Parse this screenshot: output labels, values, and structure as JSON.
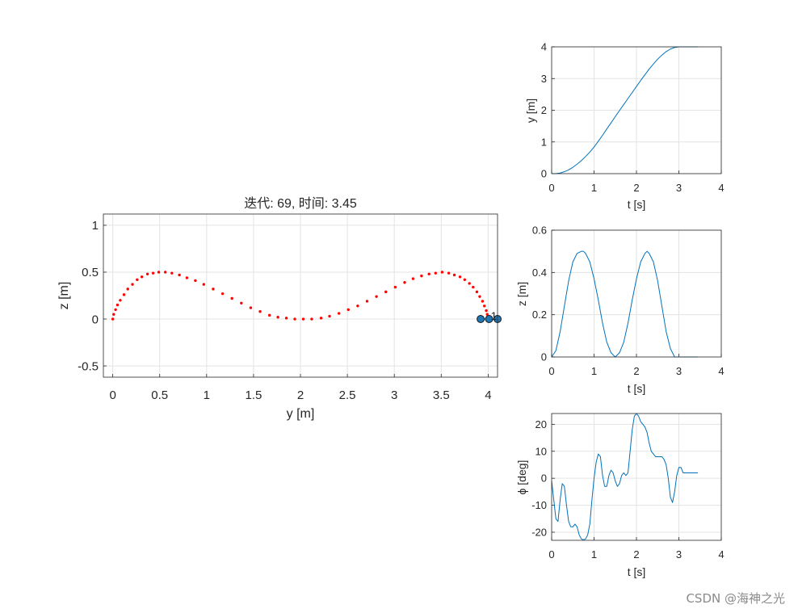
{
  "watermark": "CSDN @海神之光",
  "chart_data": [
    {
      "id": "main",
      "type": "scatter",
      "title": "迭代: 69, 时间: 3.45",
      "xlabel": "y [m]",
      "ylabel": "z [m]",
      "xlim": [
        -0.1,
        4.1
      ],
      "ylim": [
        -0.62,
        1.12
      ],
      "xticks": [
        0,
        0.5,
        1,
        1.5,
        2,
        2.5,
        3,
        3.5,
        4
      ],
      "xtick_labels": [
        "0",
        "0.5",
        "1",
        "1.5",
        "2",
        "2.5",
        "3",
        "3.5",
        "4"
      ],
      "yticks": [
        -0.5,
        0,
        0.5,
        1
      ],
      "ytick_labels": [
        "-0.5",
        "0",
        "0.5",
        "1"
      ],
      "grid": true,
      "series": [
        {
          "marker": "dot",
          "color": "#ff0000",
          "x": [
            0.0,
            0.01,
            0.03,
            0.05,
            0.08,
            0.12,
            0.16,
            0.21,
            0.26,
            0.31,
            0.37,
            0.43,
            0.49,
            0.56,
            0.63,
            0.71,
            0.79,
            0.88,
            0.97,
            1.07,
            1.17,
            1.27,
            1.37,
            1.47,
            1.57,
            1.67,
            1.76,
            1.85,
            1.94,
            2.03,
            2.12,
            2.22,
            2.31,
            2.41,
            2.51,
            2.61,
            2.71,
            2.81,
            2.91,
            3.01,
            3.11,
            3.2,
            3.29,
            3.37,
            3.44,
            3.51,
            3.58,
            3.64,
            3.7,
            3.75,
            3.8,
            3.84,
            3.88,
            3.91,
            3.94,
            3.96,
            3.98,
            3.99,
            4.0
          ],
          "y": [
            0.0,
            0.05,
            0.1,
            0.15,
            0.2,
            0.26,
            0.32,
            0.37,
            0.42,
            0.45,
            0.48,
            0.49,
            0.5,
            0.5,
            0.49,
            0.47,
            0.44,
            0.41,
            0.37,
            0.32,
            0.27,
            0.22,
            0.17,
            0.12,
            0.08,
            0.04,
            0.02,
            0.01,
            0.0,
            0.0,
            0.0,
            0.01,
            0.03,
            0.06,
            0.1,
            0.14,
            0.19,
            0.24,
            0.29,
            0.34,
            0.39,
            0.43,
            0.46,
            0.48,
            0.49,
            0.5,
            0.49,
            0.47,
            0.45,
            0.42,
            0.38,
            0.34,
            0.29,
            0.24,
            0.19,
            0.14,
            0.09,
            0.05,
            0.0
          ]
        }
      ],
      "robot": {
        "body_x": [
          3.92,
          4.01,
          4.1
        ],
        "body_y": [
          0.0,
          0.0,
          0.0
        ],
        "fill": "#1f77b4",
        "label": "1"
      }
    },
    {
      "id": "y_vs_t",
      "type": "line",
      "xlabel": "t [s]",
      "ylabel": "y [m]",
      "xlim": [
        0,
        4
      ],
      "ylim": [
        0,
        4
      ],
      "xticks": [
        0,
        1,
        2,
        3,
        4
      ],
      "xtick_labels": [
        "0",
        "1",
        "2",
        "3",
        "4"
      ],
      "yticks": [
        0,
        1,
        2,
        3,
        4
      ],
      "ytick_labels": [
        "0",
        "1",
        "2",
        "3",
        "4"
      ],
      "grid": true,
      "series": [
        {
          "color": "#0072bd",
          "x": [
            0.0,
            0.1,
            0.2,
            0.3,
            0.4,
            0.5,
            0.6,
            0.7,
            0.8,
            0.9,
            1.0,
            1.1,
            1.2,
            1.3,
            1.4,
            1.5,
            1.6,
            1.7,
            1.8,
            1.9,
            2.0,
            2.1,
            2.2,
            2.3,
            2.4,
            2.5,
            2.6,
            2.7,
            2.8,
            2.9,
            3.0,
            3.1,
            3.2,
            3.3,
            3.4,
            3.45
          ],
          "y": [
            0.0,
            0.0,
            0.02,
            0.06,
            0.12,
            0.2,
            0.3,
            0.41,
            0.54,
            0.68,
            0.84,
            1.02,
            1.21,
            1.41,
            1.6,
            1.8,
            1.99,
            2.18,
            2.37,
            2.56,
            2.75,
            2.94,
            3.12,
            3.3,
            3.46,
            3.61,
            3.74,
            3.85,
            3.93,
            3.98,
            4.0,
            4.0,
            4.0,
            4.0,
            4.0,
            4.0
          ]
        }
      ]
    },
    {
      "id": "z_vs_t",
      "type": "line",
      "xlabel": "t [s]",
      "ylabel": "z [m]",
      "xlim": [
        0,
        4
      ],
      "ylim": [
        0,
        0.6
      ],
      "xticks": [
        0,
        1,
        2,
        3,
        4
      ],
      "xtick_labels": [
        "0",
        "1",
        "2",
        "3",
        "4"
      ],
      "yticks": [
        0,
        0.2,
        0.4,
        0.6
      ],
      "ytick_labels": [
        "0",
        "0.2",
        "0.4",
        "0.6"
      ],
      "grid": true,
      "series": [
        {
          "color": "#0072bd",
          "x": [
            0.0,
            0.1,
            0.2,
            0.3,
            0.4,
            0.5,
            0.6,
            0.7,
            0.75,
            0.8,
            0.9,
            1.0,
            1.1,
            1.2,
            1.3,
            1.4,
            1.5,
            1.6,
            1.7,
            1.8,
            1.9,
            2.0,
            2.1,
            2.2,
            2.25,
            2.3,
            2.4,
            2.5,
            2.6,
            2.7,
            2.8,
            2.9,
            3.0,
            3.1,
            3.2,
            3.3,
            3.45
          ],
          "y": [
            0.0,
            0.03,
            0.12,
            0.24,
            0.36,
            0.45,
            0.49,
            0.5,
            0.5,
            0.49,
            0.45,
            0.37,
            0.27,
            0.16,
            0.07,
            0.02,
            0.0,
            0.02,
            0.07,
            0.16,
            0.27,
            0.37,
            0.45,
            0.49,
            0.5,
            0.49,
            0.45,
            0.36,
            0.24,
            0.12,
            0.04,
            0.0,
            0.0,
            0.0,
            0.0,
            0.0,
            0.0
          ]
        }
      ]
    },
    {
      "id": "phi_vs_t",
      "type": "line",
      "xlabel": "t [s]",
      "ylabel": "ϕ [deg]",
      "xlim": [
        0,
        4
      ],
      "ylim": [
        -23,
        24
      ],
      "xticks": [
        0,
        1,
        2,
        3,
        4
      ],
      "xtick_labels": [
        "0",
        "1",
        "2",
        "3",
        "4"
      ],
      "yticks": [
        -20,
        -10,
        0,
        10,
        20
      ],
      "ytick_labels": [
        "-20",
        "-10",
        "0",
        "10",
        "20"
      ],
      "grid": true,
      "series": [
        {
          "color": "#0072bd",
          "x": [
            0.0,
            0.05,
            0.1,
            0.15,
            0.2,
            0.25,
            0.3,
            0.35,
            0.4,
            0.45,
            0.5,
            0.55,
            0.6,
            0.65,
            0.7,
            0.75,
            0.8,
            0.85,
            0.9,
            0.95,
            1.0,
            1.05,
            1.1,
            1.15,
            1.2,
            1.25,
            1.3,
            1.35,
            1.4,
            1.45,
            1.5,
            1.55,
            1.6,
            1.65,
            1.7,
            1.75,
            1.8,
            1.85,
            1.9,
            1.95,
            2.0,
            2.05,
            2.1,
            2.15,
            2.2,
            2.25,
            2.3,
            2.35,
            2.4,
            2.45,
            2.5,
            2.55,
            2.6,
            2.65,
            2.7,
            2.75,
            2.8,
            2.85,
            2.9,
            2.95,
            3.0,
            3.05,
            3.1,
            3.15,
            3.2,
            3.25,
            3.3,
            3.35,
            3.4,
            3.45
          ],
          "y": [
            -1.0,
            -8.0,
            -15.0,
            -16.0,
            -8.0,
            -2.0,
            -3.0,
            -10.0,
            -16.0,
            -18.0,
            -18.0,
            -17.0,
            -18.0,
            -21.0,
            -22.5,
            -22.8,
            -22.5,
            -21.0,
            -17.0,
            -8.0,
            0.0,
            6.0,
            9.0,
            8.0,
            1.0,
            -3.0,
            -3.0,
            1.0,
            3.0,
            2.0,
            -1.0,
            -3.0,
            -2.0,
            1.0,
            2.0,
            1.0,
            2.0,
            10.0,
            18.0,
            23.0,
            24.0,
            23.0,
            21.0,
            20.0,
            19.0,
            17.0,
            13.0,
            10.0,
            9.0,
            8.0,
            8.0,
            8.0,
            8.0,
            7.0,
            5.0,
            0.0,
            -7.0,
            -9.0,
            -5.0,
            1.0,
            4.0,
            4.0,
            2.0,
            2.0,
            2.0,
            2.0,
            2.0,
            2.0,
            2.0,
            2.0
          ]
        }
      ]
    }
  ]
}
